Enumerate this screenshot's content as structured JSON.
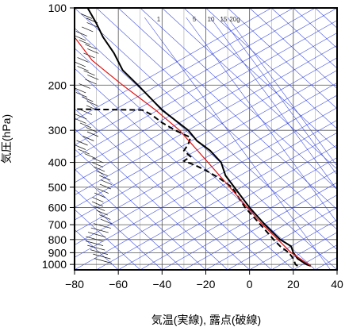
{
  "chart_data": {
    "type": "line",
    "title": "",
    "xlabel": "気温(実線), 露点(破線)",
    "ylabel": "気圧(hPa)",
    "x_axis": {
      "min": -80,
      "max": 40,
      "ticks": [
        -80,
        -60,
        -40,
        -20,
        0,
        20,
        40
      ],
      "tick_labels": [
        "−80",
        "−60",
        "−40",
        "−20",
        "0",
        "20",
        "40"
      ]
    },
    "y_axis": {
      "scale": "log",
      "min": 100,
      "max": 1050,
      "reversed": true,
      "ticks": [
        100,
        200,
        300,
        400,
        500,
        600,
        700,
        800,
        900,
        1000
      ],
      "tick_labels": [
        "100",
        "200",
        "300",
        "400",
        "500",
        "600",
        "700",
        "800",
        "900",
        "1000"
      ]
    },
    "grid": true,
    "mixing_ratio_labels": [
      "1",
      "5",
      "10",
      "15",
      "20g"
    ],
    "series": [
      {
        "style": "solid",
        "points": [
          {
            "p": 1013,
            "t": 28
          },
          {
            "p": 1000,
            "t": 26
          },
          {
            "p": 950,
            "t": 22
          },
          {
            "p": 925,
            "t": 21
          },
          {
            "p": 900,
            "t": 20
          },
          {
            "p": 850,
            "t": 19
          },
          {
            "p": 800,
            "t": 14
          },
          {
            "p": 700,
            "t": 7
          },
          {
            "p": 600,
            "t": 0
          },
          {
            "p": 500,
            "t": -7
          },
          {
            "p": 450,
            "t": -11
          },
          {
            "p": 400,
            "t": -13
          },
          {
            "p": 360,
            "t": -18
          },
          {
            "p": 330,
            "t": -24
          },
          {
            "p": 300,
            "t": -28
          },
          {
            "p": 250,
            "t": -40
          },
          {
            "p": 200,
            "t": -51
          },
          {
            "p": 175,
            "t": -58
          },
          {
            "p": 150,
            "t": -62
          },
          {
            "p": 130,
            "t": -67
          },
          {
            "p": 115,
            "t": -70
          },
          {
            "p": 100,
            "t": -74
          }
        ]
      },
      {
        "style": "dashed",
        "points": [
          {
            "p": 1013,
            "t": 22
          },
          {
            "p": 1000,
            "t": 21
          },
          {
            "p": 950,
            "t": 20
          },
          {
            "p": 925,
            "t": 19
          },
          {
            "p": 900,
            "t": 18
          },
          {
            "p": 850,
            "t": 14
          },
          {
            "p": 800,
            "t": 11
          },
          {
            "p": 700,
            "t": 5
          },
          {
            "p": 600,
            "t": -2
          },
          {
            "p": 500,
            "t": -8
          },
          {
            "p": 460,
            "t": -14
          },
          {
            "p": 430,
            "t": -20
          },
          {
            "p": 410,
            "t": -25
          },
          {
            "p": 395,
            "t": -30
          },
          {
            "p": 380,
            "t": -27
          },
          {
            "p": 360,
            "t": -30
          },
          {
            "p": 340,
            "t": -28
          },
          {
            "p": 320,
            "t": -27
          },
          {
            "p": 300,
            "t": -34
          },
          {
            "p": 280,
            "t": -40
          },
          {
            "p": 260,
            "t": -45
          },
          {
            "p": 250,
            "t": -49
          },
          {
            "p": 248,
            "t": -80
          }
        ]
      },
      {
        "style": "red",
        "points": [
          {
            "p": 1013,
            "t": 28
          },
          {
            "p": 900,
            "t": 19
          },
          {
            "p": 800,
            "t": 13
          },
          {
            "p": 700,
            "t": 6
          },
          {
            "p": 600,
            "t": -1
          },
          {
            "p": 500,
            "t": -9
          },
          {
            "p": 400,
            "t": -19
          },
          {
            "p": 300,
            "t": -32
          },
          {
            "p": 250,
            "t": -43
          },
          {
            "p": 200,
            "t": -58
          },
          {
            "p": 160,
            "t": -72
          },
          {
            "p": 130,
            "t": -80
          }
        ]
      }
    ]
  }
}
